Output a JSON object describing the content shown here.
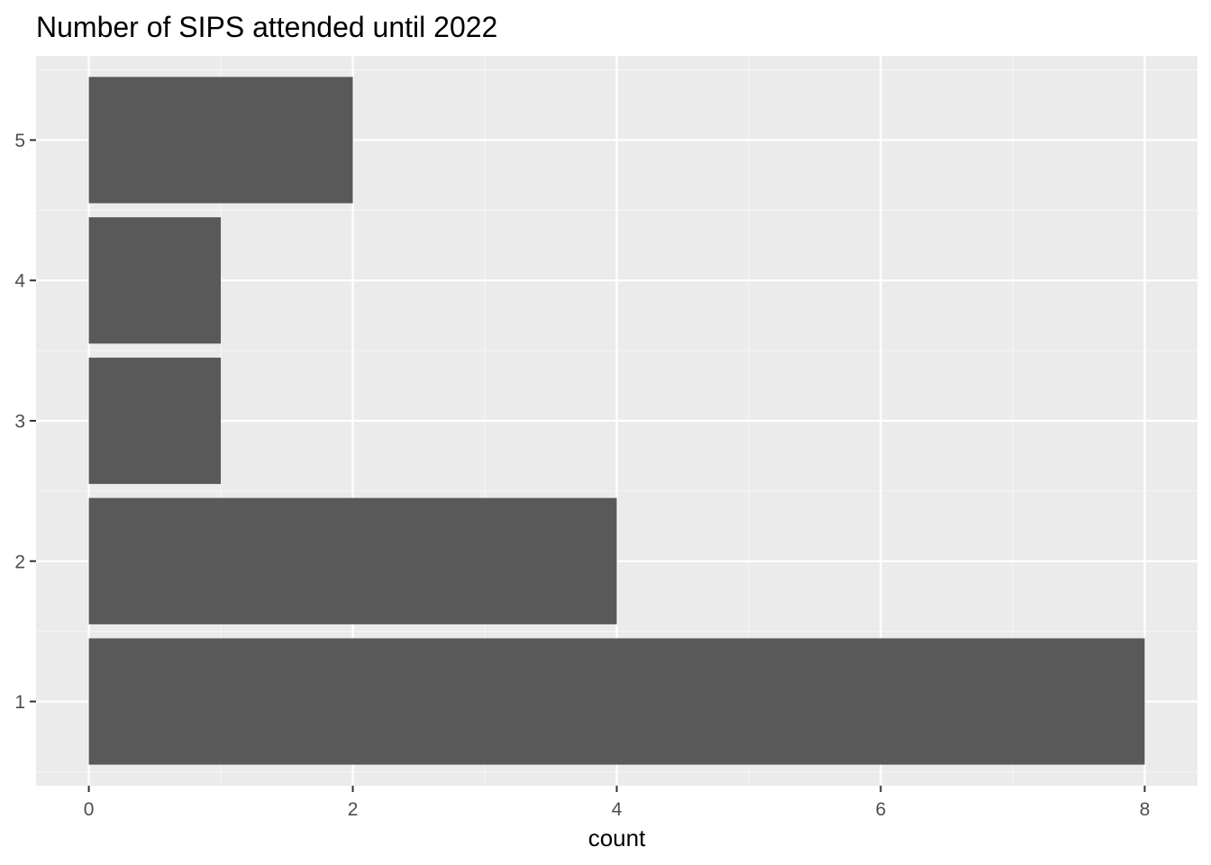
{
  "chart_data": {
    "type": "bar",
    "orientation": "horizontal",
    "title": "Number of SIPS attended until 2022",
    "xlabel": "count",
    "ylabel": "",
    "categories": [
      "1",
      "2",
      "3",
      "4",
      "5"
    ],
    "values": [
      8,
      4,
      1,
      1,
      2
    ],
    "xlim": [
      -0.4,
      8.4
    ],
    "ylim": [
      0.4,
      5.6
    ],
    "x_ticks": [
      "0",
      "2",
      "4",
      "6",
      "8"
    ],
    "grid": true,
    "legend": "none",
    "colors": {
      "bar": "#595959",
      "panel_background": "#ebebeb",
      "grid_major": "#ffffff",
      "grid_minor": "#f5f5f5",
      "tick_label": "#4d4d4d",
      "tick_mark": "#333333"
    }
  }
}
